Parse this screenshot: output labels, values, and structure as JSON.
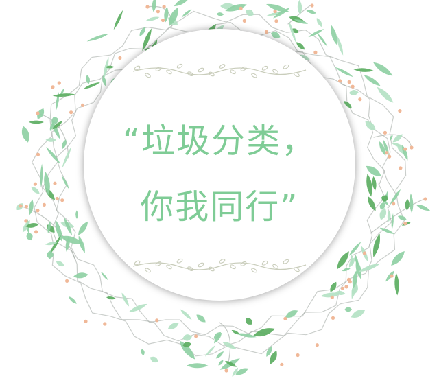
{
  "slogan": {
    "line1": "“垃圾分类，",
    "line2": "你我同行”"
  },
  "colors": {
    "text": "#7fcc96",
    "leaf_dark": "#5cae62",
    "leaf_mid": "#8fd0a4",
    "leaf_light": "#b4e2c4",
    "bud": "#f0b898",
    "stem": "#9fa6a0",
    "vine": "#c9cdbb",
    "disc": "#ffffff"
  }
}
